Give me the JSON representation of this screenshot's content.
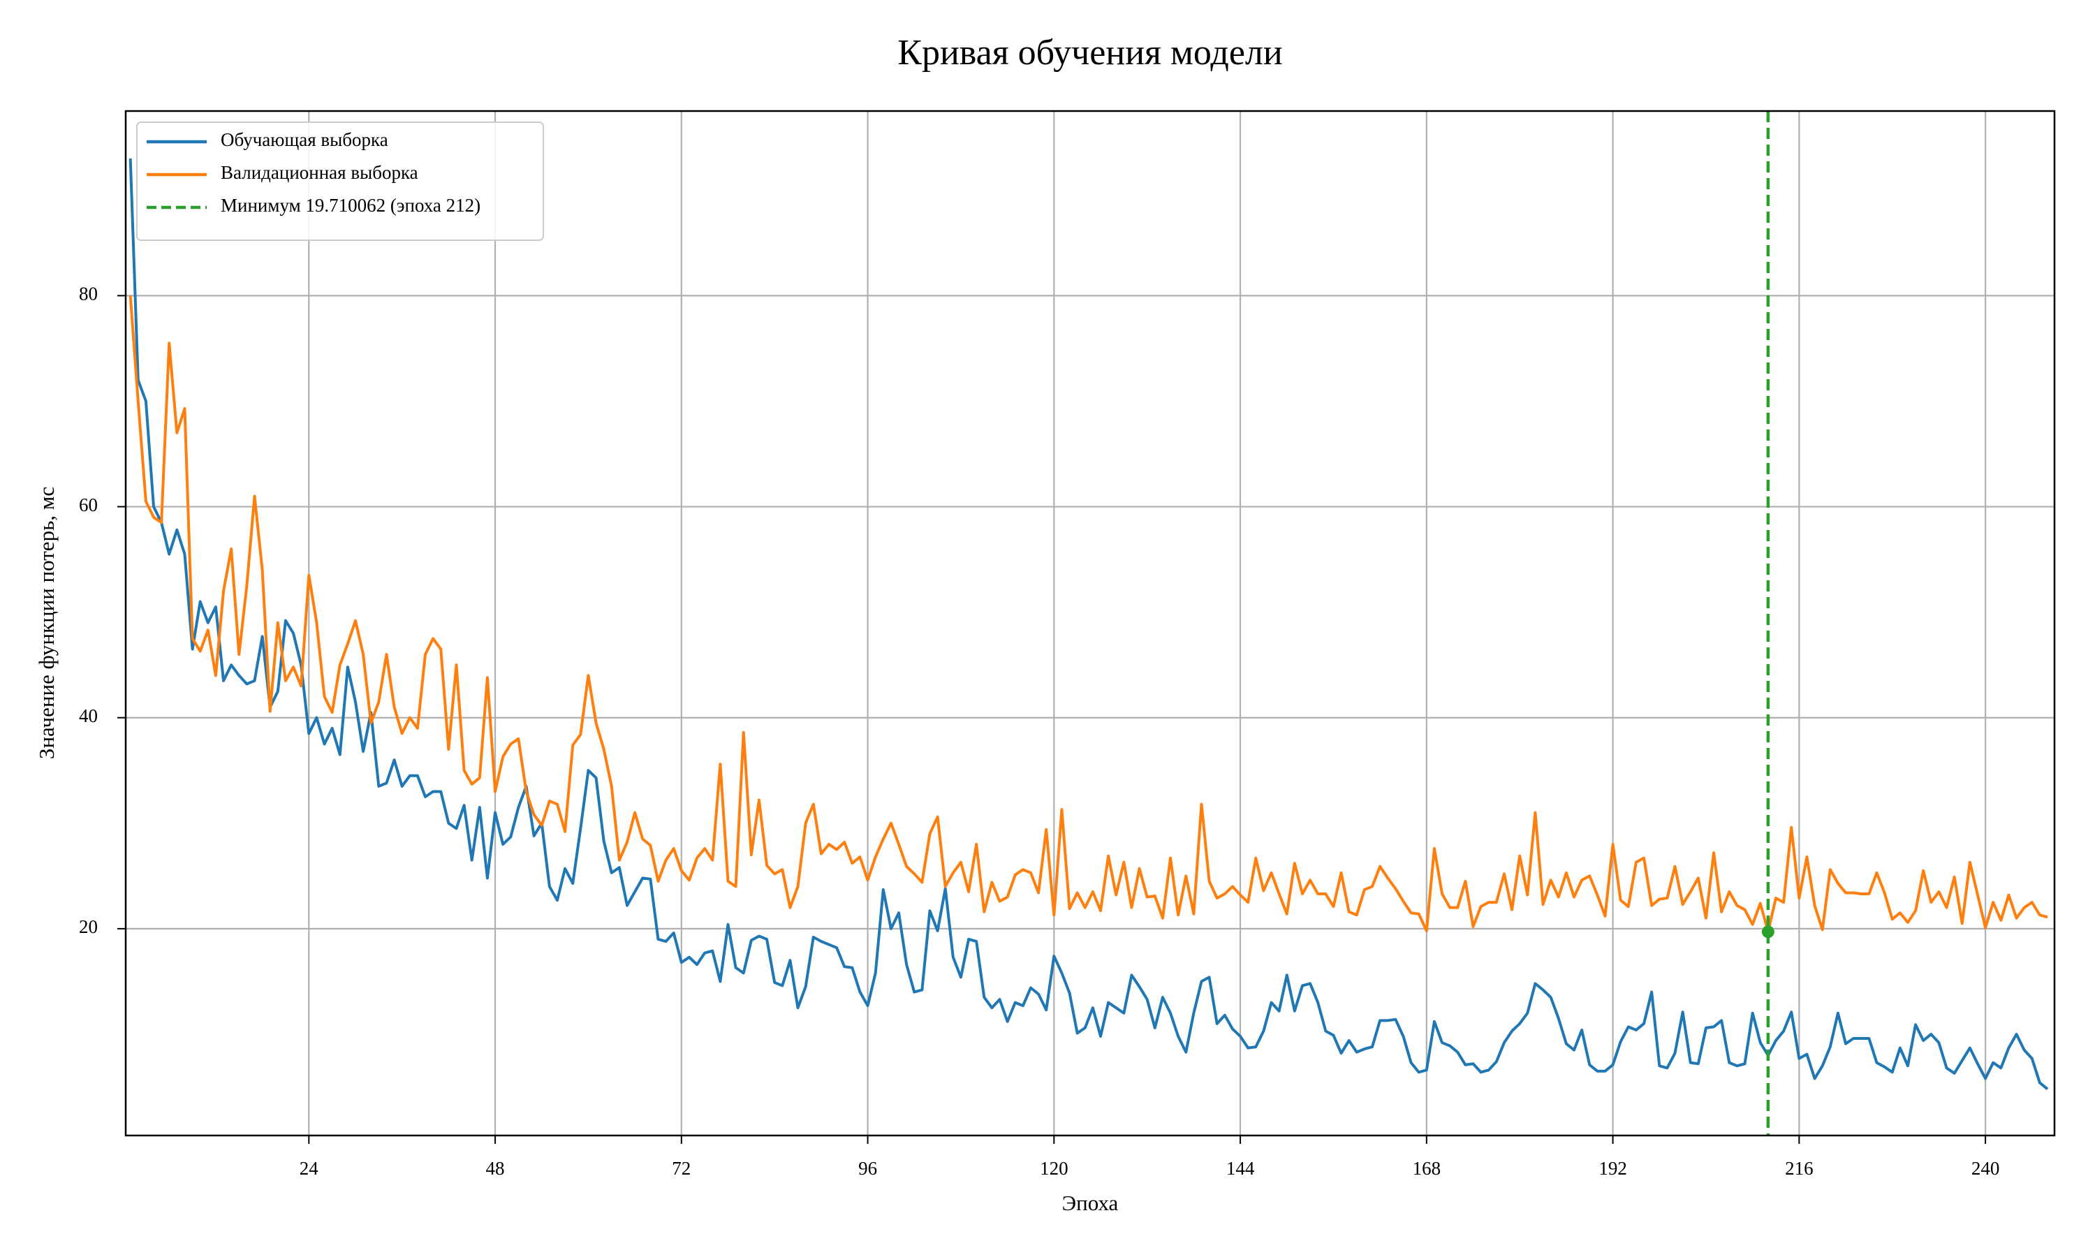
{
  "chart_data": {
    "type": "line",
    "title": "Кривая обучения модели",
    "x_label": "Эпоха",
    "y_label": "Значение функции потерь, мс",
    "x": [
      1,
      2,
      3,
      4,
      5,
      6,
      7,
      8,
      9,
      10,
      11,
      12,
      13,
      14,
      15,
      16,
      17,
      18,
      19,
      20,
      21,
      22,
      23,
      24,
      25,
      26,
      27,
      28,
      29,
      30,
      31,
      32,
      33,
      34,
      35,
      36,
      37,
      38,
      39,
      40,
      41,
      42,
      43,
      44,
      45,
      46,
      47,
      48,
      49,
      50,
      51,
      52,
      53,
      54,
      55,
      56,
      57,
      58,
      59,
      60,
      61,
      62,
      63,
      64,
      65,
      66,
      67,
      68,
      69,
      70,
      71,
      72,
      73,
      74,
      75,
      76,
      77,
      78,
      79,
      80,
      81,
      82,
      83,
      84,
      85,
      86,
      87,
      88,
      89,
      90,
      91,
      92,
      93,
      94,
      95,
      96,
      97,
      98,
      99,
      100,
      101,
      102,
      103,
      104,
      105,
      106,
      107,
      108,
      109,
      110,
      111,
      112,
      113,
      114,
      115,
      116,
      117,
      118,
      119,
      120,
      121,
      122,
      123,
      124,
      125,
      126,
      127,
      128,
      129,
      130,
      131,
      132,
      133,
      134,
      135,
      136,
      137,
      138,
      139,
      140,
      141,
      142,
      143,
      144,
      145,
      146,
      147,
      148,
      149,
      150,
      151,
      152,
      153,
      154,
      155,
      156,
      157,
      158,
      159,
      160,
      161,
      162,
      163,
      164,
      165,
      166,
      167,
      168,
      169,
      170,
      171,
      172,
      173,
      174,
      175,
      176,
      177,
      178,
      179,
      180,
      181,
      182,
      183,
      184,
      185,
      186,
      187,
      188,
      189,
      190,
      191,
      192,
      193,
      194,
      195,
      196,
      197,
      198,
      199,
      200,
      201,
      202,
      203,
      204,
      205,
      206,
      207,
      208,
      209,
      210,
      211,
      212,
      213,
      214,
      215,
      216,
      217,
      218,
      219,
      220,
      221,
      222,
      223,
      224,
      225,
      226,
      227,
      228,
      229,
      230,
      231,
      232,
      233,
      234,
      235,
      236,
      237,
      238,
      239,
      240,
      241,
      242,
      243,
      244,
      245,
      246,
      247,
      248
    ],
    "series": [
      {
        "name": "Обучающая выборка",
        "color": "#1f77b4",
        "values": [
          93,
          72,
          70,
          60,
          58.5,
          55.5,
          57.8,
          55.5,
          46.5,
          51,
          49,
          50.5,
          43.5,
          45,
          44,
          43.2,
          43.5,
          47.7,
          41,
          42.5,
          49.2,
          48,
          45,
          38.5,
          40,
          37.5,
          39,
          36.5,
          44.8,
          41.5,
          36.8,
          40.5,
          33.5,
          33.8,
          36,
          33.5,
          34.5,
          34.5,
          32.5,
          33,
          33,
          30,
          29.5,
          31.7,
          26.5,
          31.5,
          24.8,
          31,
          28,
          28.7,
          31.5,
          33.5,
          28.8,
          30,
          24,
          22.7,
          25.7,
          24.3,
          29.5,
          35,
          34.3,
          28.3,
          25.3,
          25.8,
          22.2,
          23.5,
          24.8,
          24.7,
          19,
          18.8,
          19.6,
          16.8,
          17.3,
          16.6,
          17.7,
          17.9,
          15,
          20.4,
          16.3,
          15.8,
          18.9,
          19.3,
          19,
          14.9,
          14.6,
          17,
          12.5,
          14.5,
          19.2,
          18.8,
          18.5,
          18.2,
          16.4,
          16.3,
          14,
          12.7,
          15.8,
          23.7,
          20,
          21.5,
          16.6,
          14,
          14.2,
          21.7,
          19.8,
          23.8,
          17.3,
          15.4,
          19,
          18.8,
          13.5,
          12.5,
          13.3,
          11.2,
          13,
          12.7,
          14.4,
          13.8,
          12.3,
          17.4,
          15.8,
          13.9,
          10.1,
          10.6,
          12.5,
          9.8,
          13,
          12.5,
          12,
          15.6,
          14.5,
          13.3,
          10.6,
          13.5,
          12,
          9.8,
          8.3,
          12,
          15,
          15.4,
          11,
          11.8,
          10.5,
          9.8,
          8.7,
          8.8,
          10.3,
          13,
          12.2,
          15.6,
          12.2,
          14.6,
          14.8,
          13,
          10.3,
          9.9,
          8.2,
          9.4,
          8.3,
          8.6,
          8.8,
          11.3,
          11.3,
          11.4,
          9.8,
          7.3,
          6.4,
          6.6,
          11.2,
          9.2,
          8.9,
          8.3,
          7.1,
          7.2,
          6.4,
          6.6,
          7.4,
          9.2,
          10.3,
          11,
          12,
          14.8,
          14.2,
          13.5,
          11.5,
          9.1,
          8.5,
          10.4,
          7.1,
          6.5,
          6.5,
          7.1,
          9.3,
          10.7,
          10.4,
          11,
          14,
          7,
          6.8,
          8.2,
          12.1,
          7.3,
          7.2,
          10.6,
          10.7,
          11.3,
          7.3,
          7,
          7.2,
          12,
          9.2,
          8,
          9.4,
          10.3,
          12.1,
          7.7,
          8.1,
          5.8,
          7,
          8.8,
          12,
          9.1,
          9.6,
          9.6,
          9.6,
          7.3,
          6.9,
          6.4,
          8.7,
          7,
          10.9,
          9.4,
          10,
          9.2,
          6.8,
          6.3,
          7.5,
          8.7,
          7.2,
          5.8,
          7.3,
          6.8,
          8.7,
          10,
          8.5,
          7.7,
          5.4,
          4.8
        ]
      },
      {
        "name": "Валидационная выборка",
        "color": "#ff7f0e",
        "values": [
          80,
          70,
          60.5,
          59,
          58.5,
          75.5,
          67,
          69.3,
          47.5,
          46.3,
          48.3,
          44,
          52,
          56,
          46,
          52.5,
          61,
          54,
          40.6,
          49,
          43.5,
          44.8,
          43,
          53.5,
          49,
          42,
          40.5,
          45,
          47,
          49.2,
          46,
          39.5,
          41.5,
          46,
          41,
          38.5,
          40,
          39,
          46,
          47.5,
          46.5,
          37,
          45,
          35,
          33.7,
          34.3,
          43.8,
          33,
          36.3,
          37.5,
          38,
          33,
          30.8,
          29.8,
          32.1,
          31.8,
          29.2,
          37.4,
          38.4,
          44,
          39.5,
          37,
          33.5,
          26.5,
          28.2,
          31,
          28.5,
          27.9,
          24.5,
          26.5,
          27.6,
          25.5,
          24.6,
          26.7,
          27.6,
          26.5,
          35.6,
          24.5,
          24,
          38.6,
          27,
          32.2,
          26,
          25.2,
          25.6,
          22,
          24,
          30,
          31.8,
          27.1,
          28,
          27.5,
          28.2,
          26.2,
          26.8,
          24.6,
          26.8,
          28.5,
          30,
          28,
          25.9,
          25.2,
          24.4,
          29,
          30.6,
          24,
          25.3,
          26.3,
          23.5,
          28,
          21.6,
          24.4,
          22.6,
          23,
          25.1,
          25.6,
          25.3,
          23.4,
          29.4,
          21.3,
          31.3,
          21.9,
          23.4,
          22,
          23.5,
          21.7,
          26.9,
          23.2,
          26.3,
          22,
          25.7,
          23,
          23.1,
          21,
          26.7,
          21.3,
          25,
          21.4,
          31.8,
          24.5,
          22.9,
          23.3,
          24,
          23.2,
          22.5,
          26.7,
          23.6,
          25.3,
          23.3,
          21.4,
          26.2,
          23.3,
          24.6,
          23.3,
          23.3,
          22.1,
          25.3,
          21.6,
          21.3,
          23.7,
          24,
          25.9,
          24.8,
          23.8,
          22.6,
          21.5,
          21.4,
          19.8,
          27.6,
          23.3,
          22,
          22,
          24.5,
          20.2,
          22.1,
          22.5,
          22.5,
          25.2,
          21.8,
          26.9,
          23.2,
          31,
          22.3,
          24.6,
          23,
          25.3,
          23,
          24.6,
          25,
          23.2,
          21.2,
          28,
          22.7,
          22.1,
          26.3,
          26.7,
          22.2,
          22.8,
          22.9,
          25.9,
          22.3,
          23.5,
          24.8,
          21,
          27.2,
          21.6,
          23.5,
          22.2,
          21.8,
          20.4,
          22.4,
          19.710062,
          22.9,
          22.5,
          29.6,
          22.9,
          26.8,
          22.2,
          19.9,
          25.6,
          24.3,
          23.4,
          23.4,
          23.3,
          23.3,
          25.3,
          23.4,
          20.9,
          21.5,
          20.6,
          21.7,
          25.5,
          22.5,
          23.5,
          22,
          24.9,
          20.5,
          26.3,
          23.2,
          20.1,
          22.5,
          20.8,
          23.2,
          21,
          22,
          22.5,
          21.3,
          21.1
        ]
      }
    ],
    "min_marker": {
      "label": "Минимум 19.710062 (эпоха 212)",
      "x": 212,
      "value": 19.710062,
      "color": "#2ca02c"
    },
    "xlim": [
      0.4,
      248.9
    ],
    "ylim": [
      0.4,
      97.5
    ],
    "xticks": [
      24,
      48,
      72,
      96,
      120,
      144,
      168,
      192,
      216,
      240
    ],
    "yticks": [
      20,
      40,
      60,
      80
    ],
    "grid": true,
    "legend": "upper left"
  }
}
